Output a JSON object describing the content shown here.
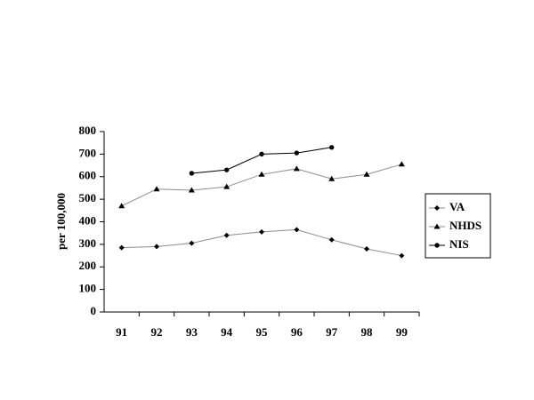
{
  "chart_data": {
    "type": "line",
    "y_label": "per 100,000",
    "categories": [
      "91",
      "92",
      "93",
      "94",
      "95",
      "96",
      "97",
      "98",
      "99"
    ],
    "series": [
      {
        "name": "VA",
        "color": "#8c8c8c",
        "marker": "diamond",
        "values": [
          285,
          290,
          305,
          340,
          355,
          365,
          320,
          280,
          250
        ]
      },
      {
        "name": "NHDS",
        "color": "#8c8c8c",
        "marker": "triangle",
        "values": [
          470,
          545,
          540,
          555,
          610,
          635,
          590,
          610,
          655
        ]
      },
      {
        "name": "NIS",
        "color": "#000000",
        "marker": "circle",
        "values": [
          null,
          null,
          615,
          630,
          700,
          705,
          730,
          null,
          null
        ]
      }
    ],
    "ylim": [
      0,
      800
    ],
    "yticks": [
      0,
      100,
      200,
      300,
      400,
      500,
      600,
      700,
      800
    ],
    "grid": false,
    "legend": "right"
  }
}
